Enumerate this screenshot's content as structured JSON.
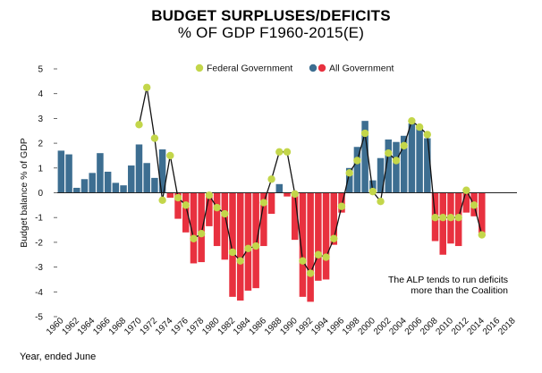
{
  "header": {
    "title": "BUDGET SURPLUSES/DEFICITS",
    "subtitle": "% OF GDP F1960-2015(E)"
  },
  "footer": {
    "xaxis_note": "Year, ended June"
  },
  "colors": {
    "surplus_bar": "#3d6e91",
    "deficit_bar": "#e8313f",
    "line": "#111111",
    "marker": "#c3d64a",
    "zero_line": "#222222"
  },
  "chart_data": {
    "type": "bar",
    "title": "BUDGET SURPLUSES/DEFICITS % OF GDP F1960-2015(E)",
    "xlabel": "Year, ended June",
    "ylabel": "Budget balance % of GDP",
    "ylim": [
      -5,
      5
    ],
    "yticks": [
      5,
      4,
      3,
      2,
      1,
      0,
      -1,
      -2,
      -3,
      -4,
      -5
    ],
    "xticks": [
      1960,
      1962,
      1964,
      1966,
      1968,
      1970,
      1972,
      1974,
      1976,
      1978,
      1980,
      1982,
      1984,
      1986,
      1988,
      1990,
      1992,
      1994,
      1996,
      1998,
      2000,
      2002,
      2004,
      2006,
      2008,
      2010,
      2012,
      2014,
      2016,
      2018
    ],
    "x": [
      1960,
      1961,
      1962,
      1963,
      1964,
      1965,
      1966,
      1967,
      1968,
      1969,
      1970,
      1971,
      1972,
      1973,
      1974,
      1975,
      1976,
      1977,
      1978,
      1979,
      1980,
      1981,
      1982,
      1983,
      1984,
      1985,
      1986,
      1987,
      1988,
      1989,
      1990,
      1991,
      1992,
      1993,
      1994,
      1995,
      1996,
      1997,
      1998,
      1999,
      2000,
      2001,
      2002,
      2003,
      2004,
      2005,
      2006,
      2007,
      2008,
      2009,
      2010,
      2011,
      2012,
      2013,
      2014
    ],
    "legend": [
      "Federal Government",
      "All Government"
    ],
    "legend_position": "top",
    "annotation": [
      "The ALP tends to run deficits",
      "more than the Coalition"
    ],
    "series": [
      {
        "name": "All Government",
        "type": "bar",
        "values": [
          1.7,
          1.55,
          0.2,
          0.55,
          0.8,
          1.6,
          0.85,
          0.4,
          0.3,
          1.1,
          1.95,
          1.2,
          0.6,
          1.75,
          -0.2,
          -1.05,
          -1.6,
          -2.85,
          -2.8,
          -1.35,
          -2.15,
          -2.7,
          -4.2,
          -4.35,
          -3.95,
          -3.85,
          -2.15,
          -0.85,
          0.35,
          -0.15,
          -1.9,
          -4.2,
          -4.4,
          -3.55,
          -3.5,
          -2.1,
          -0.8,
          1.0,
          1.85,
          2.9,
          0.5,
          1.4,
          2.15,
          2.05,
          2.3,
          2.8,
          2.6,
          2.2,
          -1.95,
          -2.5,
          -2.05,
          -2.15,
          -0.8,
          -0.95,
          -1.75
        ]
      },
      {
        "name": "Federal Government",
        "type": "line",
        "values": [
          null,
          null,
          null,
          null,
          null,
          null,
          null,
          null,
          null,
          null,
          2.75,
          4.25,
          2.2,
          -0.3,
          1.5,
          -0.2,
          -0.5,
          -1.85,
          -1.65,
          -0.1,
          -0.6,
          -0.85,
          -2.4,
          -2.75,
          -2.25,
          -2.15,
          -0.4,
          0.55,
          1.65,
          1.65,
          -0.05,
          -2.75,
          -3.25,
          -2.5,
          -2.6,
          -1.85,
          -0.55,
          0.8,
          1.3,
          2.4,
          0.05,
          -0.35,
          1.6,
          1.3,
          1.9,
          2.9,
          2.65,
          2.35,
          -1.0,
          -1.0,
          -1.0,
          -1.0,
          0.1,
          -0.5,
          -1.7
        ]
      }
    ]
  }
}
